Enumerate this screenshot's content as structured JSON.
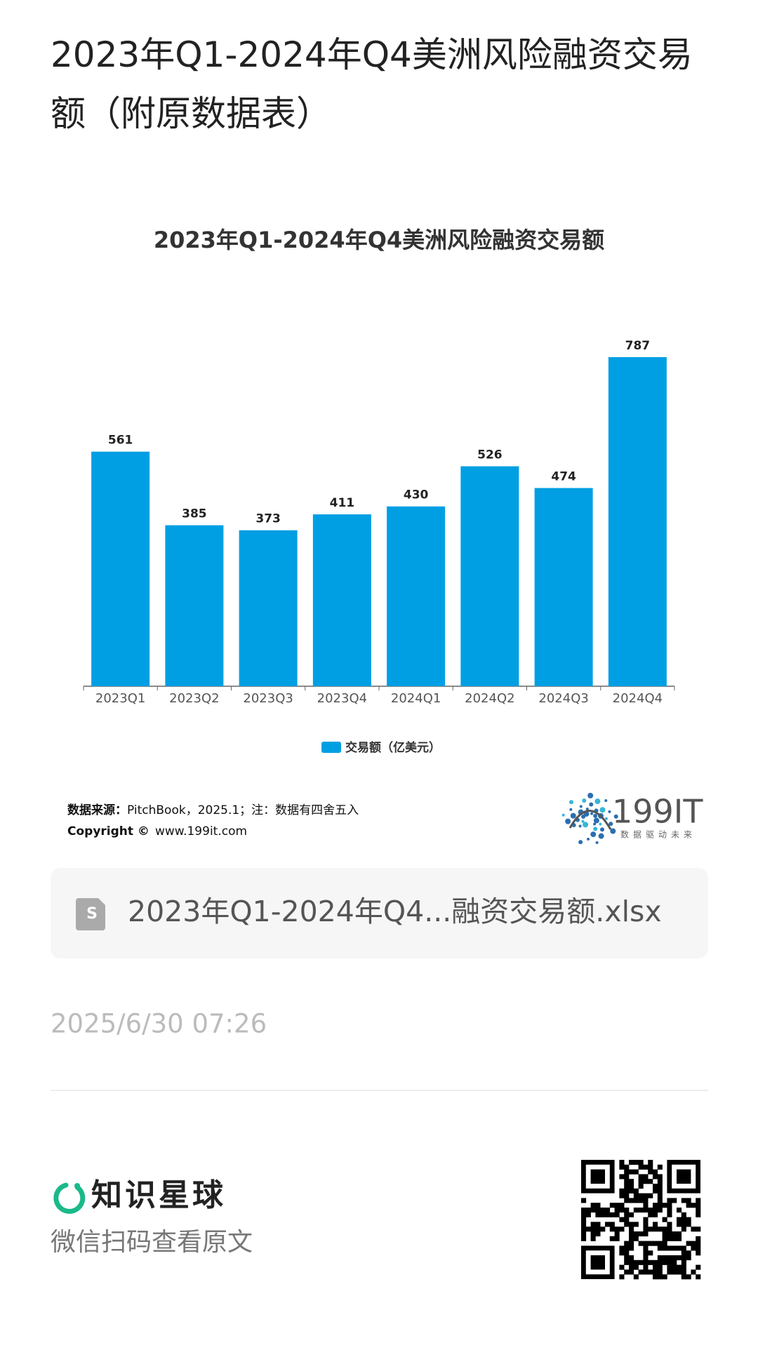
{
  "title": "2023年Q1-2024年Q4美洲风险融资交易额（附原数据表）",
  "chart_data": {
    "type": "bar",
    "title": "2023年Q1-2024年Q4美洲风险融资交易额",
    "categories": [
      "2023Q1",
      "2023Q2",
      "2023Q3",
      "2023Q4",
      "2024Q1",
      "2024Q2",
      "2024Q3",
      "2024Q4"
    ],
    "series": [
      {
        "name": "交易额（亿美元）",
        "color": "#009fe3",
        "values": [
          561,
          385,
          373,
          411,
          430,
          526,
          474,
          787
        ]
      }
    ],
    "legend": "bottom"
  },
  "source": {
    "label": "数据来源：",
    "text": "PitchBook，2025.1；注：数据有四舍五入",
    "copyright_label": "Copyright ©",
    "copyright_text": "www.199it.com"
  },
  "logo": {
    "name": "199IT",
    "slogan": "数据驱动未来"
  },
  "file": {
    "name": "2023年Q1-2024年Q4...融资交易额.xlsx"
  },
  "date": "2025/6/30 07:26",
  "footer": {
    "brand": "知识星球",
    "hint": "微信扫码查看原文"
  }
}
